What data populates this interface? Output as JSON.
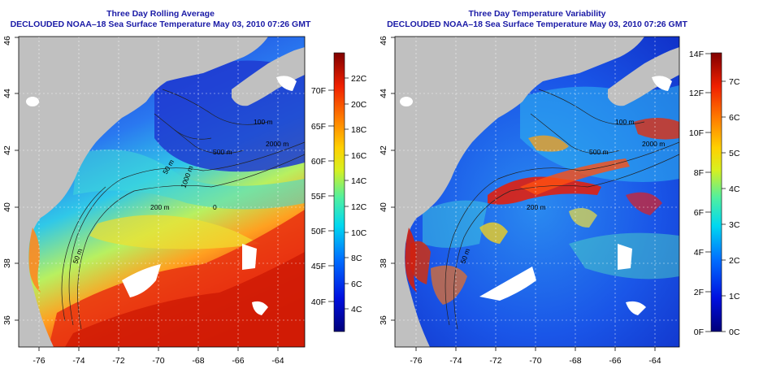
{
  "left_panel": {
    "title": "Three Day Rolling Average",
    "subtitle": "DECLOUDED NOAA–18 Sea Surface Temperature May 03, 2010 07:26 GMT",
    "lon_ticks": [
      "-76",
      "-74",
      "-72",
      "-70",
      "-68",
      "-66",
      "-64"
    ],
    "lat_ticks": [
      "36",
      "38",
      "40",
      "42",
      "44",
      "46"
    ],
    "contour_labels": [
      "100 m",
      "500 m",
      "200 m",
      "2000 m",
      "1000 m",
      "50 m",
      "50 m",
      "0"
    ],
    "colorbar": {
      "celsius_ticks": [
        "4C",
        "6C",
        "8C",
        "10C",
        "12C",
        "14C",
        "16C",
        "18C",
        "20C",
        "22C"
      ],
      "fahrenheit_ticks": [
        "40F",
        "45F",
        "50F",
        "55F",
        "60F",
        "65F",
        "70F"
      ]
    }
  },
  "right_panel": {
    "title": "Three Day Temperature Variability",
    "subtitle": "DECLOUDED NOAA–18 Sea Surface Temperature May 03, 2010 07:26 GMT",
    "lon_ticks": [
      "-76",
      "-74",
      "-72",
      "-70",
      "-68",
      "-66",
      "-64"
    ],
    "lat_ticks": [
      "36",
      "38",
      "40",
      "42",
      "44",
      "46"
    ],
    "contour_labels": [
      "100 m",
      "500 m",
      "200 m",
      "2000 m",
      "50 m"
    ],
    "colorbar": {
      "fahrenheit_ticks": [
        "0F",
        "2F",
        "4F",
        "6F",
        "8F",
        "10F",
        "12F",
        "14F"
      ],
      "celsius_ticks": [
        "0C",
        "1C",
        "2C",
        "3C",
        "4C",
        "5C",
        "6C",
        "7C"
      ]
    }
  },
  "colors": {
    "land": "#c0c0c0",
    "title_blue": "#1a1aa6"
  }
}
